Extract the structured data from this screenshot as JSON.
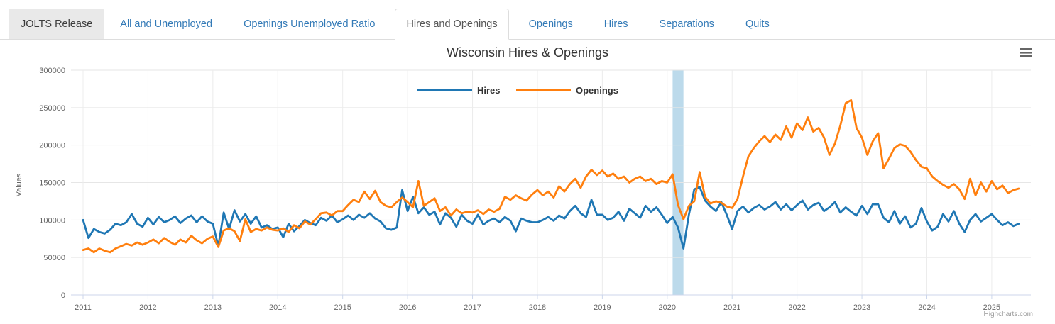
{
  "tabs": {
    "brand": "JOLTS Release",
    "items": [
      {
        "label": "All and Unemployed",
        "active": false
      },
      {
        "label": "Openings Unemployed Ratio",
        "active": false
      },
      {
        "label": "Hires and Openings",
        "active": true
      },
      {
        "label": "Openings",
        "active": false
      },
      {
        "label": "Hires",
        "active": false
      },
      {
        "label": "Separations",
        "active": false
      },
      {
        "label": "Quits",
        "active": false
      }
    ]
  },
  "chart": {
    "title": "Wisconsin Hires & Openings",
    "credit": "Highcharts.com",
    "menu_icon": "hamburger-icon",
    "colors": {
      "title_text": "#333333",
      "axis_label_text": "#666666",
      "legend_text": "#333333",
      "grid_line": "#e6e6e6",
      "minor_grid_line": "#ececec",
      "axis_line": "#ccd6eb",
      "credit_text": "#999999",
      "menu_icon_color": "#666666"
    }
  },
  "chart_data": {
    "type": "line",
    "title": "Wisconsin Hires & Openings",
    "xlabel": "",
    "ylabel": "Values",
    "ylim": [
      0,
      300000
    ],
    "ytick_interval": 50000,
    "yticks": [
      0,
      50000,
      100000,
      150000,
      200000,
      250000,
      300000
    ],
    "x_ticks": [
      2011,
      2012,
      2013,
      2014,
      2015,
      2016,
      2017,
      2018,
      2019,
      2020,
      2021,
      2022,
      2023,
      2024,
      2025
    ],
    "x_frequency": "monthly",
    "x_start": "2011-01",
    "x_end": "2025-06",
    "grid": true,
    "legend_position": "top-center",
    "plot_band": {
      "from_month_index": 109,
      "to_month_index": 111,
      "label": "2020-recession-band",
      "color": "#bcdaeb"
    },
    "series": [
      {
        "name": "Hires",
        "color": "#1f77b4",
        "values": [
          100000,
          76000,
          88000,
          84000,
          82000,
          87000,
          95000,
          93000,
          97000,
          108000,
          95000,
          91000,
          103000,
          94000,
          104000,
          97000,
          100000,
          105000,
          96000,
          102000,
          106000,
          97000,
          105000,
          98000,
          95000,
          65000,
          110000,
          88000,
          113000,
          98000,
          108000,
          95000,
          105000,
          90000,
          93000,
          88000,
          90000,
          77000,
          95000,
          85000,
          92000,
          100000,
          96000,
          93000,
          103000,
          99000,
          106000,
          97000,
          101000,
          106000,
          100000,
          107000,
          103000,
          109000,
          102000,
          98000,
          89000,
          87000,
          90000,
          140000,
          112000,
          131000,
          109000,
          117000,
          107000,
          111000,
          94000,
          109000,
          103000,
          91000,
          107000,
          99000,
          95000,
          107000,
          94000,
          99000,
          102000,
          97000,
          104000,
          99000,
          85000,
          102000,
          99000,
          97000,
          97000,
          100000,
          104000,
          99000,
          106000,
          102000,
          112000,
          119000,
          109000,
          104000,
          127000,
          107000,
          107000,
          100000,
          103000,
          111000,
          99000,
          115000,
          109000,
          103000,
          119000,
          111000,
          117000,
          107000,
          96000,
          104000,
          90000,
          62000,
          107000,
          141000,
          144000,
          126000,
          118000,
          112000,
          124000,
          107000,
          88000,
          112000,
          118000,
          110000,
          116000,
          120000,
          114000,
          118000,
          124000,
          114000,
          121000,
          113000,
          120000,
          126000,
          114000,
          120000,
          123000,
          112000,
          117000,
          124000,
          110000,
          117000,
          111000,
          106000,
          119000,
          108000,
          121000,
          121000,
          103000,
          97000,
          112000,
          95000,
          105000,
          90000,
          95000,
          116000,
          98000,
          86000,
          91000,
          108000,
          98000,
          112000,
          95000,
          84000,
          100000,
          108000,
          98000,
          103000,
          108000,
          100000,
          93000,
          97000,
          92000,
          95000
        ]
      },
      {
        "name": "Openings",
        "color": "#ff7f0e",
        "values": [
          60000,
          62000,
          57000,
          62000,
          59000,
          57000,
          62000,
          65000,
          68000,
          66000,
          70000,
          67000,
          70000,
          74000,
          69000,
          76000,
          71000,
          67000,
          74000,
          70000,
          79000,
          73000,
          69000,
          75000,
          78000,
          64000,
          86000,
          89000,
          85000,
          72000,
          101000,
          84000,
          88000,
          86000,
          90000,
          87000,
          86000,
          89000,
          84000,
          93000,
          89000,
          98000,
          94000,
          101000,
          109000,
          110000,
          106000,
          112000,
          112000,
          120000,
          127000,
          124000,
          138000,
          128000,
          139000,
          124000,
          119000,
          117000,
          124000,
          130000,
          124000,
          117000,
          152000,
          119000,
          124000,
          129000,
          112000,
          117000,
          106000,
          114000,
          109000,
          111000,
          110000,
          113000,
          108000,
          114000,
          111000,
          115000,
          131000,
          127000,
          133000,
          129000,
          126000,
          134000,
          140000,
          133000,
          138000,
          130000,
          145000,
          138000,
          148000,
          155000,
          143000,
          158000,
          167000,
          160000,
          166000,
          158000,
          162000,
          155000,
          158000,
          150000,
          155000,
          158000,
          152000,
          155000,
          148000,
          152000,
          150000,
          161000,
          120000,
          101000,
          119000,
          125000,
          164000,
          131000,
          122000,
          125000,
          123000,
          118000,
          116000,
          128000,
          158000,
          185000,
          196000,
          205000,
          212000,
          204000,
          214000,
          207000,
          225000,
          210000,
          229000,
          220000,
          237000,
          218000,
          223000,
          210000,
          187000,
          202000,
          226000,
          256000,
          260000,
          223000,
          210000,
          187000,
          205000,
          216000,
          169000,
          182000,
          196000,
          201000,
          199000,
          191000,
          180000,
          171000,
          169000,
          158000,
          152000,
          147000,
          143000,
          148000,
          141000,
          128000,
          155000,
          133000,
          150000,
          138000,
          152000,
          141000,
          146000,
          136000,
          140000,
          142000
        ]
      }
    ]
  }
}
